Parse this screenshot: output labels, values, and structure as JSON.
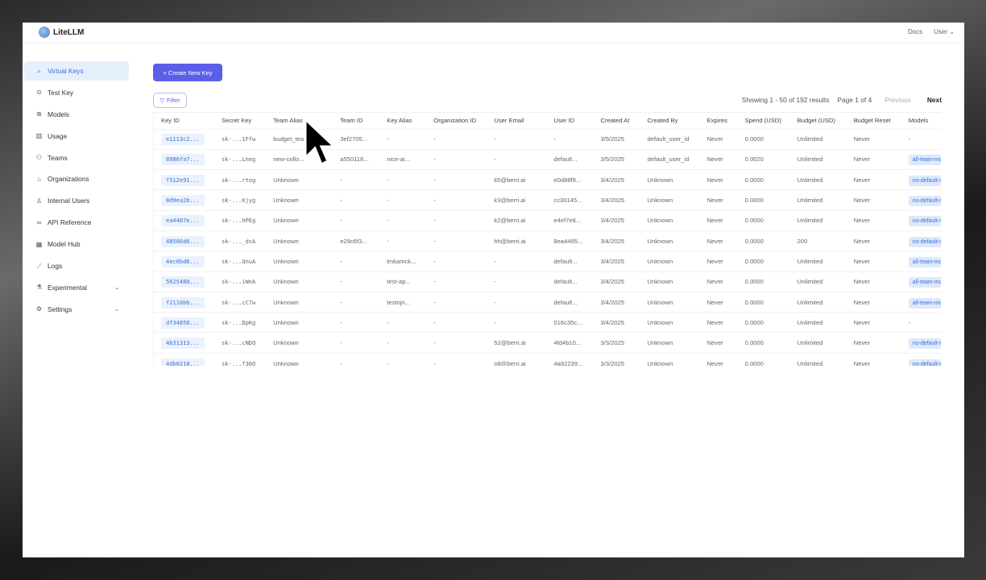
{
  "header": {
    "app_name": "LiteLLM",
    "docs": "Docs",
    "user": "User"
  },
  "sidebar": {
    "items": [
      {
        "label": "Virtual Keys",
        "icon": "key-search-icon",
        "active": true
      },
      {
        "label": "Test Key",
        "icon": "play-circle-icon"
      },
      {
        "label": "Models",
        "icon": "models-icon"
      },
      {
        "label": "Usage",
        "icon": "bar-chart-icon"
      },
      {
        "label": "Teams",
        "icon": "team-icon"
      },
      {
        "label": "Organizations",
        "icon": "bank-icon"
      },
      {
        "label": "Internal Users",
        "icon": "user-icon"
      },
      {
        "label": "API Reference",
        "icon": "link-icon"
      },
      {
        "label": "Model Hub",
        "icon": "grid-icon"
      },
      {
        "label": "Logs",
        "icon": "line-chart-icon"
      },
      {
        "label": "Experimental",
        "icon": "flask-icon",
        "expandable": true
      },
      {
        "label": "Settings",
        "icon": "gear-icon",
        "expandable": true
      }
    ]
  },
  "toolbar": {
    "create_label": "+ Create New Key",
    "filter_label": "Filter"
  },
  "pagination": {
    "showing": "Showing 1 - 50 of 192 results",
    "page": "Page 1 of 4",
    "previous": "Previous",
    "next": "Next"
  },
  "table": {
    "columns": [
      "Key ID",
      "Secret Key",
      "Team Alias",
      "Team ID",
      "Key Alias",
      "Organization ID",
      "User Email",
      "User ID",
      "Created At",
      "Created By",
      "Expires",
      "Spend (USD)",
      "Budget (USD)",
      "Budget Reset",
      "Models"
    ],
    "rows": [
      [
        "e1113c2...",
        "sk-...1Ffw",
        "budget_team",
        "3ef2705...",
        "-",
        "-",
        "-",
        "-",
        "3/5/2025",
        "default_user_id",
        "Never",
        "0.0000",
        "Unlimited",
        "Never",
        "-"
      ],
      [
        "8986fa7...",
        "sk-...Lneg",
        "new-collo...",
        "a550118...",
        "nice-ai...",
        "-",
        "-",
        "default...",
        "3/5/2025",
        "default_user_id",
        "Never",
        "0.0020",
        "Unlimited",
        "Never",
        "all-team-models"
      ],
      [
        "f512e91...",
        "sk-...rtog",
        "Unknown",
        "-",
        "-",
        "-",
        "k5@berri.ai",
        "e0d88f9...",
        "3/4/2025",
        "Unknown",
        "Never",
        "0.0000",
        "Unlimited",
        "Never",
        "no-default-models"
      ],
      [
        "8d9ea2b...",
        "sk-...Kjyg",
        "Unknown",
        "-",
        "-",
        "-",
        "k3@berri.ai",
        "cc30145...",
        "3/4/2025",
        "Unknown",
        "Never",
        "0.0000",
        "Unlimited",
        "Never",
        "no-default-models"
      ],
      [
        "ea4487e...",
        "sk-...hPEg",
        "Unknown",
        "-",
        "-",
        "-",
        "k2@berri.ai",
        "e4ef7e8...",
        "3/4/2025",
        "Unknown",
        "Never",
        "0.0000",
        "Unlimited",
        "Never",
        "no-default-models"
      ],
      [
        "48506d6...",
        "sk-..._dsA",
        "Unknown",
        "e29c6f3...",
        "-",
        "-",
        "hh@berri.ai",
        "8ea4495...",
        "3/4/2025",
        "Unknown",
        "Never",
        "0.0000",
        "200",
        "Never",
        "no-default-models"
      ],
      [
        "4ec0bd6...",
        "sk-...QnuA",
        "Unknown",
        "-",
        "lmkamck...",
        "-",
        "-",
        "default...",
        "3/4/2025",
        "Unknown",
        "Never",
        "0.0000",
        "Unlimited",
        "Never",
        "all-team-models"
      ],
      [
        "5625480...",
        "sk-...iWeA",
        "Unknown",
        "-",
        "test-ap...",
        "-",
        "-",
        "default...",
        "3/4/2025",
        "Unknown",
        "Never",
        "0.0000",
        "Unlimited",
        "Never",
        "all-team-models"
      ],
      [
        "f2110bb...",
        "sk-...cC7w",
        "Unknown",
        "-",
        "testnjn...",
        "-",
        "-",
        "default...",
        "3/4/2025",
        "Unknown",
        "Never",
        "0.0000",
        "Unlimited",
        "Never",
        "all-team-models"
      ],
      [
        "df34850...",
        "sk-...DpKg",
        "Unknown",
        "-",
        "-",
        "-",
        "-",
        "016c35c...",
        "3/4/2025",
        "Unknown",
        "Never",
        "0.0000",
        "Unlimited",
        "Never",
        "-"
      ],
      [
        "4b31313...",
        "sk-...cNDQ",
        "Unknown",
        "-",
        "-",
        "-",
        "52@berri.ai",
        "4fd4b10...",
        "3/3/2025",
        "Unknown",
        "Never",
        "0.0000",
        "Unlimited",
        "Never",
        "no-default-models"
      ],
      [
        "4db0218...",
        "sk-...f30Q",
        "Unknown",
        "-",
        "-",
        "-",
        "n8@berri.ai",
        "4a92239...",
        "3/3/2025",
        "Unknown",
        "Never",
        "0.0000",
        "Unlimited",
        "Never",
        "no-default-models"
      ]
    ]
  }
}
